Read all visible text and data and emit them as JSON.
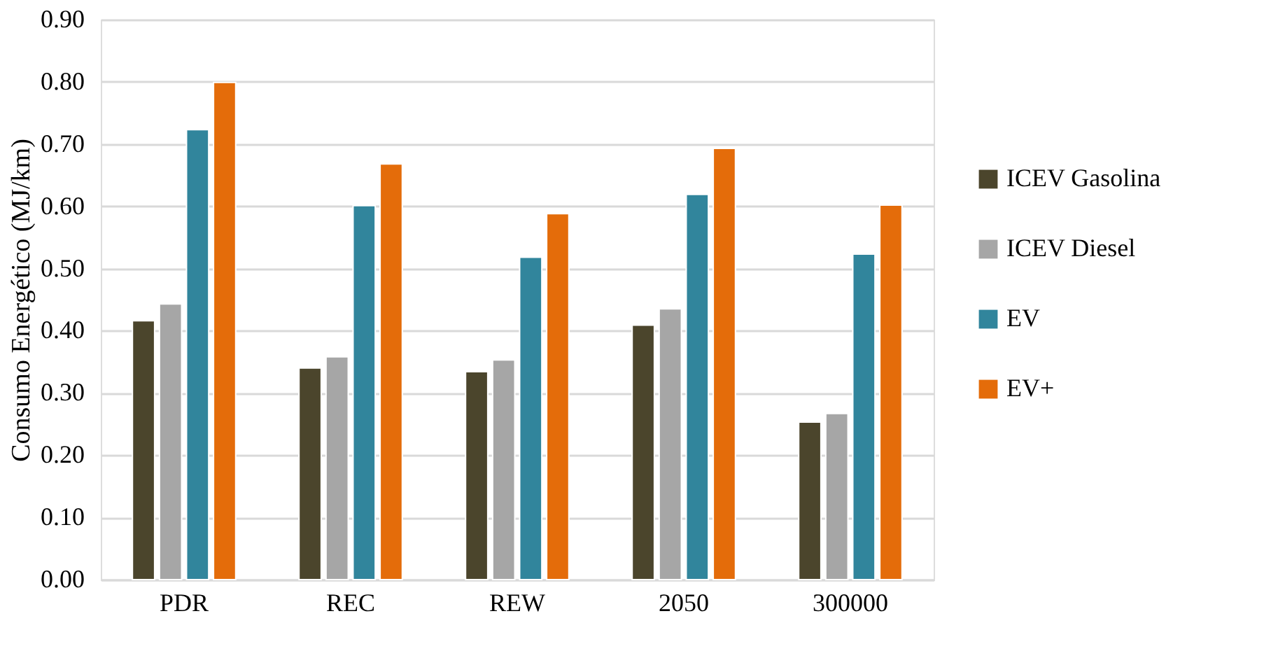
{
  "chart_data": {
    "type": "bar",
    "ylabel": "Consumo Energético (MJ/km)",
    "categories": [
      "PDR",
      "REC",
      "REW",
      "2050",
      "300000"
    ],
    "series": [
      {
        "name": "ICEV Gasolina",
        "color": "#4b452c",
        "values": [
          0.416,
          0.34,
          0.334,
          0.409,
          0.253
        ]
      },
      {
        "name": "ICEV Diesel",
        "color": "#a6a6a6",
        "values": [
          0.443,
          0.358,
          0.353,
          0.435,
          0.267
        ]
      },
      {
        "name": "EV",
        "color": "#31859c",
        "values": [
          0.723,
          0.601,
          0.518,
          0.619,
          0.523
        ]
      },
      {
        "name": "EV+",
        "color": "#e46c0a",
        "values": [
          0.799,
          0.668,
          0.588,
          0.693,
          0.602
        ]
      }
    ],
    "ylim": [
      0,
      0.9
    ],
    "yticks": [
      {
        "value": 0,
        "label": "0.00"
      },
      {
        "value": 0.1,
        "label": "0.10"
      },
      {
        "value": 0.2,
        "label": "0.20"
      },
      {
        "value": 0.3,
        "label": "0.30"
      },
      {
        "value": 0.4,
        "label": "0.40"
      },
      {
        "value": 0.5,
        "label": "0.50"
      },
      {
        "value": 0.6,
        "label": "0.60"
      },
      {
        "value": 0.7,
        "label": "0.70"
      },
      {
        "value": 0.8,
        "label": "0.80"
      },
      {
        "value": 0.9,
        "label": "0.90"
      }
    ],
    "grid": "y",
    "legend": "right"
  }
}
